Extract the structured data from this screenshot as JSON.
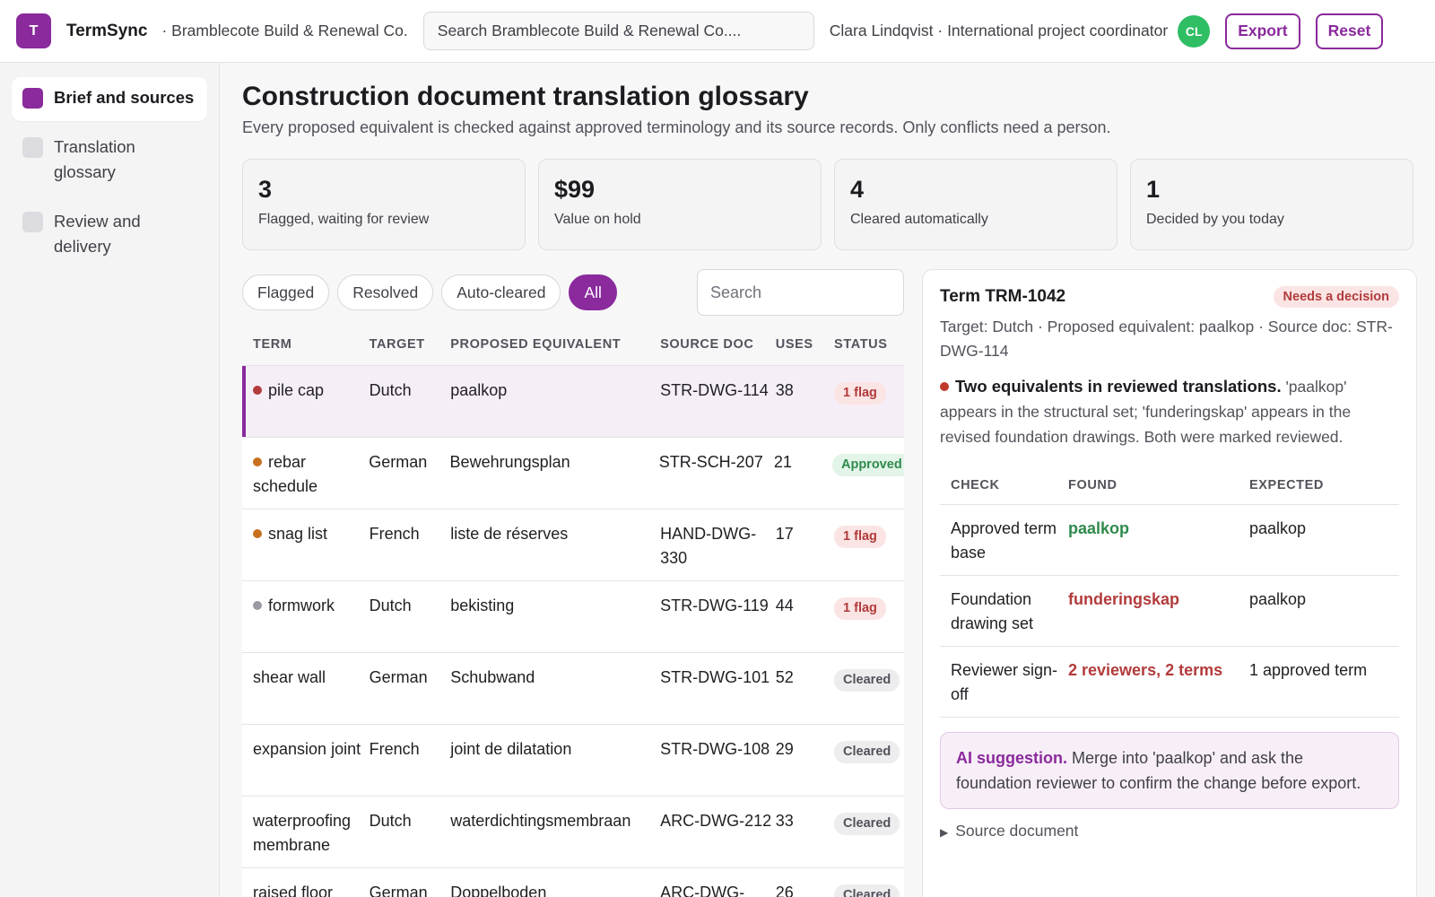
{
  "app": {
    "logo_letter": "T",
    "name": "TermSync",
    "org": "· Bramblecote Build & Renewal Co.",
    "search_placeholder": "Search Bramblecote Build & Renewal Co....",
    "user": "Clara Lindqvist · International project coordinator",
    "avatar_initials": "CL",
    "export_label": "Export",
    "reset_label": "Reset"
  },
  "sidebar": {
    "items": [
      {
        "label": "Brief and sources",
        "active": true
      },
      {
        "label": "Translation glossary",
        "active": false
      },
      {
        "label": "Review and delivery",
        "active": false
      }
    ]
  },
  "page": {
    "title": "Construction document translation glossary",
    "subtitle": "Every proposed equivalent is checked against approved terminology and its source records. Only conflicts need a person."
  },
  "stats": [
    {
      "value": "3",
      "label": "Flagged, waiting for review"
    },
    {
      "value": "$99",
      "label": "Value on hold"
    },
    {
      "value": "4",
      "label": "Cleared automatically"
    },
    {
      "value": "1",
      "label": "Decided by you today"
    }
  ],
  "filters": {
    "chips": [
      "Flagged",
      "Resolved",
      "Auto-cleared",
      "All"
    ],
    "active": "All",
    "search_placeholder": "Search"
  },
  "table": {
    "headers": [
      "TERM",
      "TARGET",
      "PROPOSED EQUIVALENT",
      "SOURCE DOC",
      "USES",
      "STATUS"
    ],
    "rows": [
      {
        "term": "pile cap",
        "dot": "#b23b3b",
        "target": "Dutch",
        "equivalent": "paalkop",
        "doc": "STR-DWG-114",
        "uses": "38",
        "status": "1 flag",
        "status_type": "flag",
        "selected": true
      },
      {
        "term": "rebar schedule",
        "dot": "#c8701e",
        "target": "German",
        "equivalent": "Bewehrungsplan",
        "doc": "STR-SCH-207",
        "uses": "21",
        "status": "Approved",
        "status_type": "appr"
      },
      {
        "term": "snag list",
        "dot": "#c8701e",
        "target": "French",
        "equivalent": "liste de réserves",
        "doc": "HAND-DWG-330",
        "uses": "17",
        "status": "1 flag",
        "status_type": "flag"
      },
      {
        "term": "formwork",
        "dot": "#9a9aa3",
        "target": "Dutch",
        "equivalent": "bekisting",
        "doc": "STR-DWG-119",
        "uses": "44",
        "status": "1 flag",
        "status_type": "flag"
      },
      {
        "term": "shear wall",
        "dot": "",
        "target": "German",
        "equivalent": "Schubwand",
        "doc": "STR-DWG-101",
        "uses": "52",
        "status": "Cleared",
        "status_type": "clear"
      },
      {
        "term": "expansion joint",
        "dot": "",
        "target": "French",
        "equivalent": "joint de dilatation",
        "doc": "STR-DWG-108",
        "uses": "29",
        "status": "Cleared",
        "status_type": "clear"
      },
      {
        "term": "waterproofing membrane",
        "dot": "",
        "target": "Dutch",
        "equivalent": "waterdichtingsmembraan",
        "doc": "ARC-DWG-212",
        "uses": "33",
        "status": "Cleared",
        "status_type": "clear"
      },
      {
        "term": "raised floor",
        "dot": "",
        "target": "German",
        "equivalent": "Doppelboden",
        "doc": "ARC-DWG-",
        "uses": "26",
        "status": "Cleared",
        "status_type": "clear"
      }
    ]
  },
  "detail": {
    "title": "Term TRM-1042",
    "badge": "Needs a decision",
    "meta": "Target: Dutch · Proposed equivalent: paalkop · Source doc: STR-DWG-114",
    "issue_title": "Two equivalents in reviewed translations.",
    "issue_text": "'paalkop' appears in the structural set; 'funderingskap' appears in the revised foundation drawings. Both were marked reviewed.",
    "check_headers": [
      "CHECK",
      "FOUND",
      "EXPECTED"
    ],
    "checks": [
      {
        "check": "Approved term base",
        "found": "paalkop",
        "found_ok": true,
        "expected": "paalkop"
      },
      {
        "check": "Foundation drawing set",
        "found": "funderingskap",
        "found_ok": false,
        "expected": "paalkop"
      },
      {
        "check": "Reviewer sign-off",
        "found": "2 reviewers, 2 terms",
        "found_ok": false,
        "expected": "1 approved term"
      }
    ],
    "ai_label": "AI suggestion.",
    "ai_text": "Merge into 'paalkop' and ask the foundation reviewer to confirm the change before export.",
    "source_doc_label": "Source document"
  }
}
